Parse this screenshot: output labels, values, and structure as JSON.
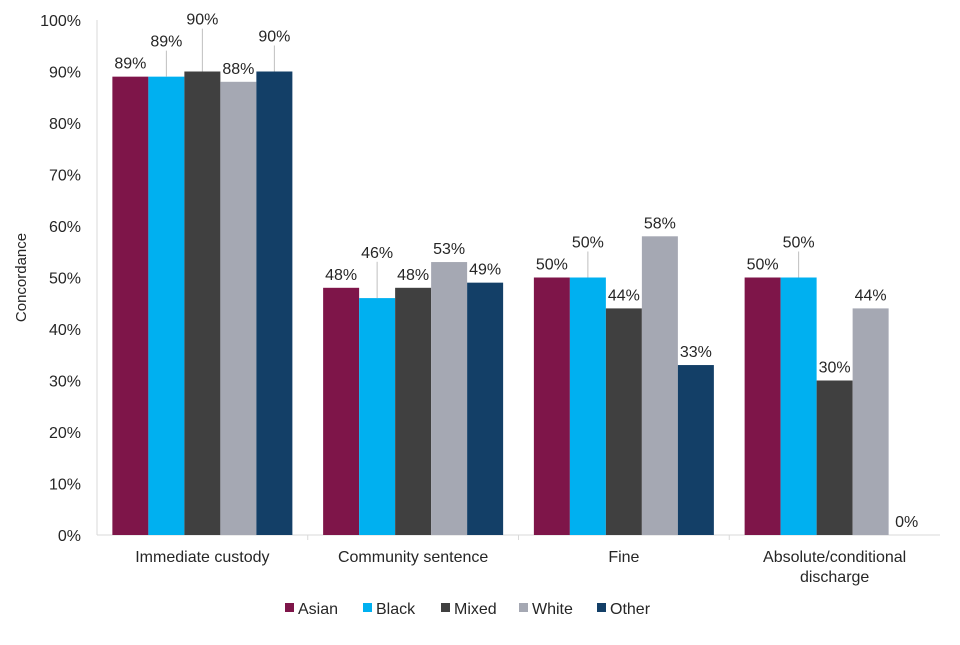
{
  "chart_data": {
    "type": "bar",
    "title": "",
    "xlabel": "",
    "ylabel": "Concordance",
    "ylim": [
      0,
      100
    ],
    "yticks": [
      "0%",
      "10%",
      "20%",
      "30%",
      "40%",
      "50%",
      "60%",
      "70%",
      "80%",
      "90%",
      "100%"
    ],
    "grid": false,
    "legend_placement": "bottom",
    "categories": [
      "Immediate custody",
      "Community sentence",
      "Fine",
      "Absolute/conditional discharge"
    ],
    "category_lines": [
      [
        "Immediate custody"
      ],
      [
        "Community sentence"
      ],
      [
        "Fine"
      ],
      [
        "Absolute/conditional",
        "discharge"
      ]
    ],
    "series": [
      {
        "name": "Asian",
        "color": "#7E1549",
        "values": [
          89,
          48,
          50,
          50
        ],
        "labels": [
          "89%",
          "48%",
          "50%",
          "50%"
        ]
      },
      {
        "name": "Black",
        "color": "#00B0F0",
        "values": [
          89,
          46,
          50,
          50
        ],
        "labels": [
          "89%",
          "46%",
          "50%",
          "50%"
        ]
      },
      {
        "name": "Mixed",
        "color": "#404040",
        "values": [
          90,
          48,
          44,
          30
        ],
        "labels": [
          "90%",
          "48%",
          "44%",
          "30%"
        ]
      },
      {
        "name": "White",
        "color": "#A5A8B3",
        "values": [
          88,
          53,
          58,
          44
        ],
        "labels": [
          "88%",
          "53%",
          "58%",
          "44%"
        ]
      },
      {
        "name": "Other",
        "color": "#133F67",
        "values": [
          90,
          49,
          33,
          0
        ],
        "labels": [
          "90%",
          "49%",
          "33%",
          "0%"
        ]
      }
    ]
  }
}
